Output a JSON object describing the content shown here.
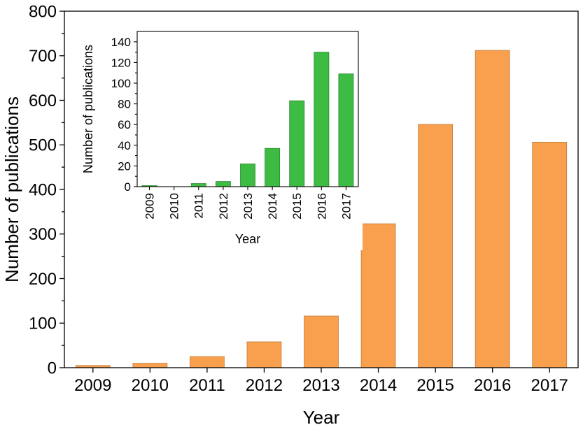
{
  "chart_data": [
    {
      "type": "bar",
      "categories": [
        "2009",
        "2010",
        "2011",
        "2012",
        "2013",
        "2014",
        "2015",
        "2016",
        "2017"
      ],
      "values": [
        5,
        10,
        25,
        58,
        116,
        323,
        546,
        712,
        506
      ],
      "xlabel": "Year",
      "ylabel": "Number of publications",
      "ylim": [
        0,
        800
      ],
      "yticks": [
        "0",
        "100",
        "200",
        "300",
        "400",
        "500",
        "600",
        "700",
        "800"
      ],
      "color": "#F9A04E",
      "grid": false
    },
    {
      "type": "bar",
      "inset": true,
      "placement": "top-left",
      "categories": [
        "2009",
        "2010",
        "2011",
        "2012",
        "2013",
        "2014",
        "2015",
        "2016",
        "2017"
      ],
      "values": [
        1,
        0,
        3,
        5,
        22,
        37,
        83,
        130,
        109
      ],
      "xlabel": "Year",
      "ylabel": "Number of publications",
      "ylim": [
        0,
        150
      ],
      "yticks": [
        "0",
        "20",
        "40",
        "60",
        "80",
        "100",
        "120",
        "140"
      ],
      "color": "#3EBB42",
      "grid": false
    }
  ]
}
